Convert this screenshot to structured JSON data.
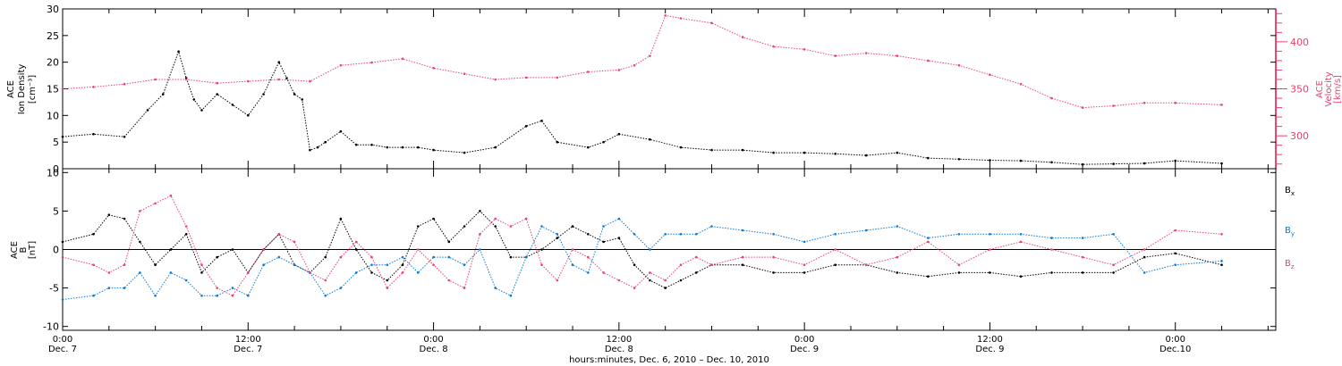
{
  "chart_data": [
    {
      "type": "scatter",
      "panel": "top",
      "left_axis": {
        "label_lines": [
          "ACE",
          "Ion Density",
          "[cm⁻³]"
        ],
        "ticks": [
          0,
          5,
          10,
          15,
          20,
          25,
          30
        ],
        "range": [
          0,
          30
        ]
      },
      "right_axis": {
        "label_lines": [
          "ACE",
          "Velocity",
          "[km/s]"
        ],
        "ticks": [
          300,
          350,
          400
        ],
        "range": [
          265,
          435
        ]
      },
      "series": [
        {
          "name": "",
          "axis": "left",
          "color": "#000000",
          "x": [
            0,
            2,
            4,
            5.5,
            6.5,
            7.5,
            8,
            8.5,
            9,
            10,
            11,
            12,
            13,
            14,
            14.5,
            15,
            15.5,
            16,
            16.5,
            17,
            18,
            19,
            20,
            21,
            22,
            23,
            24,
            26,
            28,
            30,
            31,
            32,
            34,
            35,
            36,
            38,
            40,
            42,
            44,
            46,
            48,
            50,
            52,
            54,
            56,
            58,
            60,
            62,
            64,
            66,
            68,
            70,
            72,
            75
          ],
          "y": [
            6,
            6.5,
            6,
            11,
            14,
            22,
            17,
            13,
            11,
            14,
            12,
            10,
            14,
            20,
            17,
            14,
            13,
            3.5,
            4,
            5,
            7,
            4.5,
            4.5,
            4,
            4,
            4,
            3.5,
            3,
            4,
            8,
            9,
            5,
            4,
            5,
            6.5,
            5.5,
            4,
            3.5,
            3.5,
            3,
            3,
            2.8,
            2.5,
            3,
            2,
            1.8,
            1.6,
            1.5,
            1.2,
            0.8,
            0.9,
            1,
            1.5,
            1
          ]
        },
        {
          "name": "",
          "axis": "right",
          "color": "#e8436e",
          "x": [
            0,
            2,
            4,
            6,
            8,
            10,
            12,
            14,
            16,
            18,
            20,
            22,
            24,
            26,
            28,
            30,
            32,
            34,
            36,
            37,
            38,
            39,
            40,
            42,
            44,
            46,
            48,
            50,
            52,
            54,
            56,
            58,
            60,
            62,
            64,
            66,
            68,
            70,
            72,
            75
          ],
          "y": [
            350,
            352,
            355,
            360,
            360,
            356,
            358,
            360,
            358,
            375,
            378,
            382,
            372,
            366,
            360,
            362,
            362,
            368,
            370,
            375,
            385,
            428,
            425,
            420,
            405,
            395,
            392,
            385,
            388,
            385,
            380,
            375,
            365,
            355,
            340,
            330,
            332,
            335,
            335,
            333
          ]
        }
      ]
    },
    {
      "type": "scatter",
      "panel": "bottom",
      "left_axis": {
        "label_lines": [
          "ACE",
          "B",
          "[nT]"
        ],
        "ticks": [
          -10,
          -5,
          0,
          5,
          10
        ],
        "range": [
          -10.5,
          10.5
        ]
      },
      "series": [
        {
          "name": "B",
          "subscript": "x",
          "color": "#000000",
          "x": [
            0,
            2,
            3,
            4,
            5,
            6,
            7,
            8,
            9,
            10,
            11,
            12,
            13,
            14,
            15,
            16,
            17,
            18,
            19,
            20,
            21,
            22,
            23,
            24,
            25,
            26,
            27,
            28,
            29,
            30,
            31,
            32,
            33,
            34,
            35,
            36,
            37,
            38,
            39,
            40,
            41,
            42,
            44,
            46,
            48,
            50,
            52,
            54,
            56,
            58,
            60,
            62,
            64,
            66,
            68,
            70,
            72,
            75
          ],
          "y": [
            1,
            2,
            4.5,
            4,
            1,
            -2,
            0,
            2,
            -3,
            -1,
            0,
            -3,
            0,
            2,
            -2,
            -3,
            -1,
            4,
            0,
            -3,
            -4,
            -2,
            3,
            4,
            1,
            3,
            5,
            3,
            -1,
            -1,
            0,
            1.5,
            3,
            2,
            1,
            1.5,
            -2,
            -4,
            -5,
            -4,
            -3,
            -2,
            -2,
            -3,
            -3,
            -2,
            -2,
            -3,
            -3.5,
            -3,
            -3,
            -3.5,
            -3,
            -3,
            -3,
            -1,
            -0.5,
            -2
          ]
        },
        {
          "name": "B",
          "subscript": "y",
          "color": "#0a7ad8",
          "x": [
            0,
            2,
            3,
            4,
            5,
            6,
            7,
            8,
            9,
            10,
            11,
            12,
            13,
            14,
            15,
            16,
            17,
            18,
            19,
            20,
            21,
            22,
            23,
            24,
            25,
            26,
            27,
            28,
            29,
            30,
            31,
            32,
            33,
            34,
            35,
            36,
            37,
            38,
            39,
            40,
            41,
            42,
            44,
            46,
            48,
            50,
            52,
            54,
            56,
            58,
            60,
            62,
            64,
            66,
            68,
            70,
            72,
            75
          ],
          "y": [
            -6.5,
            -6,
            -5,
            -5,
            -3,
            -6,
            -3,
            -4,
            -6,
            -6,
            -5,
            -6,
            -2,
            -1,
            -2,
            -3,
            -6,
            -5,
            -3,
            -2,
            -2,
            -1,
            -3,
            -1,
            -1,
            -2,
            0,
            -5,
            -6,
            -1,
            3,
            2,
            -2,
            -3,
            3,
            4,
            2,
            0,
            2,
            2,
            2,
            3,
            2.5,
            2,
            1,
            2,
            2.5,
            3,
            1.5,
            2,
            2,
            2,
            1.5,
            1.5,
            2,
            -3,
            -2,
            -1.5
          ]
        },
        {
          "name": "B",
          "subscript": "z",
          "color": "#e8436e",
          "x": [
            0,
            2,
            3,
            4,
            5,
            6,
            7,
            8,
            9,
            10,
            11,
            12,
            13,
            14,
            15,
            16,
            17,
            18,
            19,
            20,
            21,
            22,
            23,
            24,
            25,
            26,
            27,
            28,
            29,
            30,
            31,
            32,
            33,
            34,
            35,
            36,
            37,
            38,
            39,
            40,
            41,
            42,
            44,
            46,
            48,
            50,
            52,
            54,
            56,
            58,
            60,
            62,
            64,
            66,
            68,
            70,
            72,
            75
          ],
          "y": [
            -1,
            -2,
            -3,
            -2,
            5,
            6,
            7,
            3,
            -2,
            -5,
            -6,
            -3,
            0,
            2,
            1,
            -3,
            -4,
            -1,
            1,
            -1,
            -5,
            -3,
            0,
            -2,
            -4,
            -5,
            2,
            4,
            3,
            4,
            -2,
            -4,
            0,
            -1,
            -3,
            -4,
            -5,
            -3,
            -4,
            -2,
            -1,
            -2,
            -1,
            -1,
            -2,
            0,
            -2,
            -1,
            1,
            -2,
            0,
            1,
            0,
            -1,
            -2,
            0,
            2.5,
            2
          ]
        }
      ]
    }
  ],
  "x_axis": {
    "ticks": [
      {
        "time": "0:00",
        "date": "Dec. 7"
      },
      {
        "time": "12:00",
        "date": "Dec. 7"
      },
      {
        "time": "0:00",
        "date": "Dec. 8"
      },
      {
        "time": "12:00",
        "date": "Dec. 8"
      },
      {
        "time": "0:00",
        "date": "Dec. 9"
      },
      {
        "time": "12:00",
        "date": "Dec. 9"
      },
      {
        "time": "0:00",
        "date": "Dec.10"
      }
    ],
    "range_hours": [
      0,
      78.5
    ],
    "minor_tick_hours": 3,
    "label": "hours:minutes, Dec. 6, 2010 – Dec. 10, 2010"
  }
}
